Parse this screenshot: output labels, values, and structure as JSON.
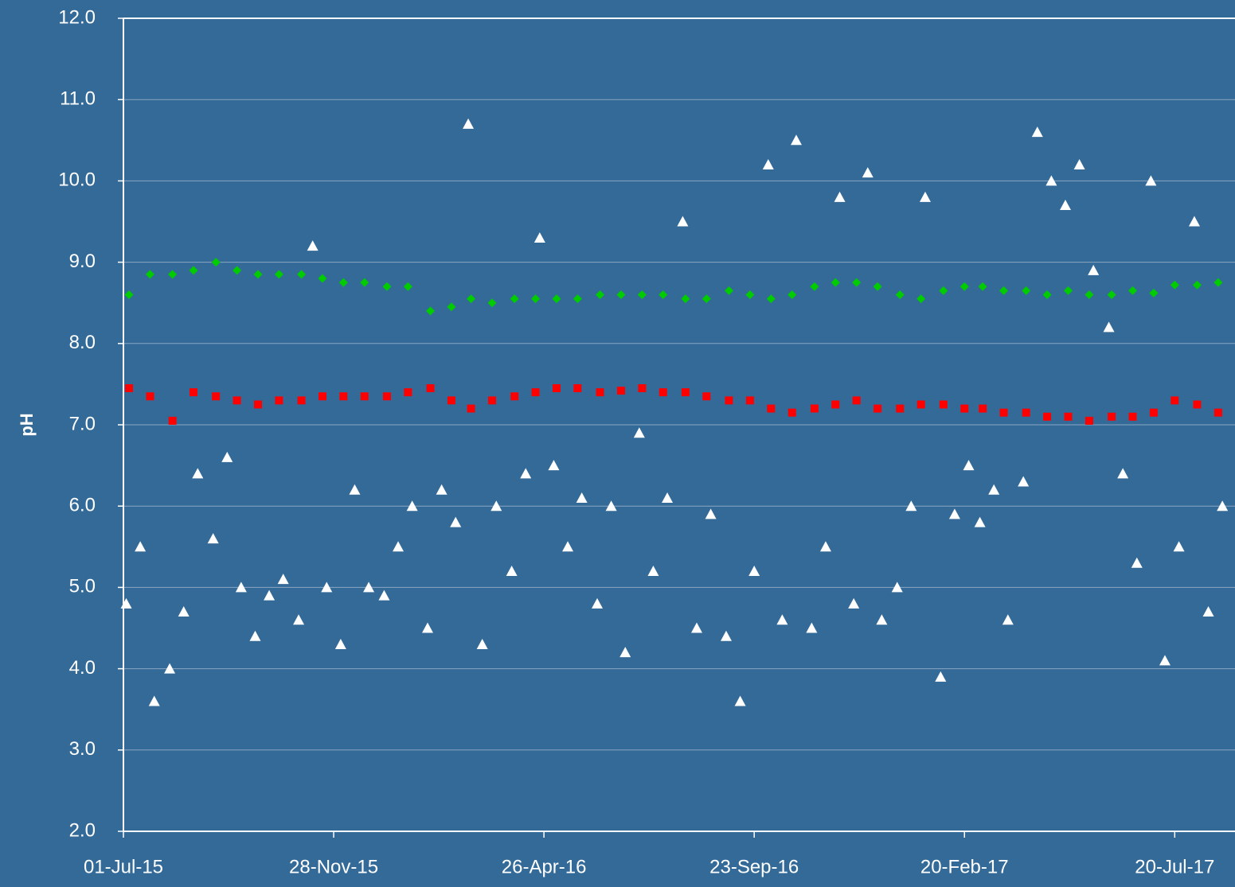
{
  "chart_data": {
    "type": "scatter",
    "ylabel": "pH",
    "xlim": [
      "01-Jul-15",
      "01-Sep-17"
    ],
    "xticks": [
      "01-Jul-15",
      "28-Nov-15",
      "26-Apr-16",
      "23-Sep-16",
      "20-Feb-17",
      "20-Jul-17"
    ],
    "ylim": [
      2,
      12
    ],
    "yticks": [
      {
        "value": 2,
        "label": "2.0"
      },
      {
        "value": 3,
        "label": "3.0"
      },
      {
        "value": 4,
        "label": "4.0"
      },
      {
        "value": 5,
        "label": "5.0"
      },
      {
        "value": 6,
        "label": "6.0"
      },
      {
        "value": 7,
        "label": "7.0"
      },
      {
        "value": 8,
        "label": "8.0"
      },
      {
        "value": 9,
        "label": "9.0"
      },
      {
        "value": 10,
        "label": "10.0"
      },
      {
        "value": 11,
        "label": "11.0"
      },
      {
        "value": 12,
        "label": "12.0"
      }
    ],
    "grid": true,
    "series": [
      {
        "color": "#ffffff",
        "marker": "triangle",
        "x": [
          "03-Jul-15",
          "13-Jul-15",
          "23-Jul-15",
          "03-Aug-15",
          "13-Aug-15",
          "23-Aug-15",
          "03-Sep-15",
          "13-Sep-15",
          "23-Sep-15",
          "03-Oct-15",
          "13-Oct-15",
          "23-Oct-15",
          "03-Nov-15",
          "13-Nov-15",
          "23-Nov-15",
          "03-Dec-15",
          "13-Dec-15",
          "23-Dec-15",
          "03-Jan-16",
          "13-Jan-16",
          "23-Jan-16",
          "03-Feb-16",
          "13-Feb-16",
          "23-Feb-16",
          "03-Mar-16",
          "13-Mar-16",
          "23-Mar-16",
          "03-Apr-16",
          "13-Apr-16",
          "23-Apr-16",
          "03-May-16",
          "13-May-16",
          "23-May-16",
          "03-Jun-16",
          "13-Jun-16",
          "23-Jun-16",
          "03-Jul-16",
          "13-Jul-16",
          "23-Jul-16",
          "03-Aug-16",
          "13-Aug-16",
          "23-Aug-16",
          "03-Sep-16",
          "13-Sep-16",
          "23-Sep-16",
          "03-Oct-16",
          "13-Oct-16",
          "23-Oct-16",
          "03-Nov-16",
          "13-Nov-16",
          "23-Nov-16",
          "03-Dec-16",
          "13-Dec-16",
          "23-Dec-16",
          "03-Jan-17",
          "13-Jan-17",
          "23-Jan-17",
          "03-Feb-17",
          "13-Feb-17",
          "23-Feb-17",
          "03-Mar-17",
          "13-Mar-17",
          "23-Mar-17",
          "03-Apr-17",
          "13-Apr-17",
          "23-Apr-17",
          "03-May-17",
          "13-May-17",
          "23-May-17",
          "03-Jun-17",
          "13-Jun-17",
          "23-Jun-17",
          "03-Jul-17",
          "13-Jul-17",
          "23-Jul-17",
          "03-Aug-17",
          "13-Aug-17",
          "23-Aug-17"
        ],
        "values": [
          4.8,
          5.5,
          3.6,
          4.0,
          4.7,
          6.4,
          5.6,
          6.6,
          5.0,
          4.4,
          4.9,
          5.1,
          4.6,
          9.2,
          5.0,
          4.3,
          6.2,
          5.0,
          4.9,
          5.5,
          6.0,
          4.5,
          6.2,
          5.8,
          10.7,
          4.3,
          6.0,
          5.2,
          6.4,
          9.3,
          6.5,
          5.5,
          6.1,
          4.8,
          6.0,
          4.2,
          6.9,
          5.2,
          6.1,
          9.5,
          4.5,
          5.9,
          4.4,
          3.6,
          5.2,
          10.2,
          4.6,
          10.5,
          4.5,
          5.5,
          9.8,
          4.8,
          10.1,
          4.6,
          5.0,
          6.0,
          9.8,
          3.9,
          5.9,
          6.5,
          5.8,
          6.2,
          4.6,
          6.3,
          10.6,
          10.0,
          9.7,
          10.2,
          8.9,
          8.2,
          6.4,
          5.3,
          10.0,
          4.1,
          5.5,
          9.5,
          4.7,
          6.0
        ]
      },
      {
        "color": "#00cc00",
        "marker": "diamond",
        "x": [
          "05-Jul-15",
          "20-Jul-15",
          "05-Aug-15",
          "20-Aug-15",
          "05-Sep-15",
          "20-Sep-15",
          "05-Oct-15",
          "20-Oct-15",
          "05-Nov-15",
          "20-Nov-15",
          "05-Dec-15",
          "20-Dec-15",
          "05-Jan-16",
          "20-Jan-16",
          "05-Feb-16",
          "20-Feb-16",
          "05-Mar-16",
          "20-Mar-16",
          "05-Apr-16",
          "20-Apr-16",
          "05-May-16",
          "20-May-16",
          "05-Jun-16",
          "20-Jun-16",
          "05-Jul-16",
          "20-Jul-16",
          "05-Aug-16",
          "20-Aug-16",
          "05-Sep-16",
          "20-Sep-16",
          "05-Oct-16",
          "20-Oct-16",
          "05-Nov-16",
          "20-Nov-16",
          "05-Dec-16",
          "20-Dec-16",
          "05-Jan-17",
          "20-Jan-17",
          "05-Feb-17",
          "20-Feb-17",
          "05-Mar-17",
          "20-Mar-17",
          "05-Apr-17",
          "20-Apr-17",
          "05-May-17",
          "20-May-17",
          "05-Jun-17",
          "20-Jun-17",
          "05-Jul-17",
          "20-Jul-17",
          "05-Aug-17",
          "20-Aug-17"
        ],
        "values": [
          8.6,
          8.85,
          8.85,
          8.9,
          9.0,
          8.9,
          8.85,
          8.85,
          8.85,
          8.8,
          8.75,
          8.75,
          8.7,
          8.7,
          8.4,
          8.45,
          8.55,
          8.5,
          8.55,
          8.55,
          8.55,
          8.55,
          8.6,
          8.6,
          8.6,
          8.6,
          8.55,
          8.55,
          8.65,
          8.6,
          8.55,
          8.6,
          8.7,
          8.75,
          8.75,
          8.7,
          8.6,
          8.55,
          8.65,
          8.7,
          8.7,
          8.65,
          8.65,
          8.6,
          8.65,
          8.6,
          8.6,
          8.65,
          8.62,
          8.72,
          8.72,
          8.75
        ]
      },
      {
        "color": "#ff0000",
        "marker": "square",
        "x": [
          "05-Jul-15",
          "20-Jul-15",
          "05-Aug-15",
          "20-Aug-15",
          "05-Sep-15",
          "20-Sep-15",
          "05-Oct-15",
          "20-Oct-15",
          "05-Nov-15",
          "20-Nov-15",
          "05-Dec-15",
          "20-Dec-15",
          "05-Jan-16",
          "20-Jan-16",
          "05-Feb-16",
          "20-Feb-16",
          "05-Mar-16",
          "20-Mar-16",
          "05-Apr-16",
          "20-Apr-16",
          "05-May-16",
          "20-May-16",
          "05-Jun-16",
          "20-Jun-16",
          "05-Jul-16",
          "20-Jul-16",
          "05-Aug-16",
          "20-Aug-16",
          "05-Sep-16",
          "20-Sep-16",
          "05-Oct-16",
          "20-Oct-16",
          "05-Nov-16",
          "20-Nov-16",
          "05-Dec-16",
          "20-Dec-16",
          "05-Jan-17",
          "20-Jan-17",
          "05-Feb-17",
          "20-Feb-17",
          "05-Mar-17",
          "20-Mar-17",
          "05-Apr-17",
          "20-Apr-17",
          "05-May-17",
          "20-May-17",
          "05-Jun-17",
          "20-Jun-17",
          "05-Jul-17",
          "20-Jul-17",
          "05-Aug-17",
          "20-Aug-17"
        ],
        "values": [
          7.45,
          7.35,
          7.05,
          7.4,
          7.35,
          7.3,
          7.25,
          7.3,
          7.3,
          7.35,
          7.35,
          7.35,
          7.35,
          7.4,
          7.45,
          7.3,
          7.2,
          7.3,
          7.35,
          7.4,
          7.45,
          7.45,
          7.4,
          7.42,
          7.45,
          7.4,
          7.4,
          7.35,
          7.3,
          7.3,
          7.2,
          7.15,
          7.2,
          7.25,
          7.3,
          7.2,
          7.2,
          7.25,
          7.25,
          7.2,
          7.2,
          7.15,
          7.15,
          7.1,
          7.1,
          7.05,
          7.1,
          7.1,
          7.15,
          7.3,
          7.25,
          7.15
        ]
      }
    ]
  }
}
